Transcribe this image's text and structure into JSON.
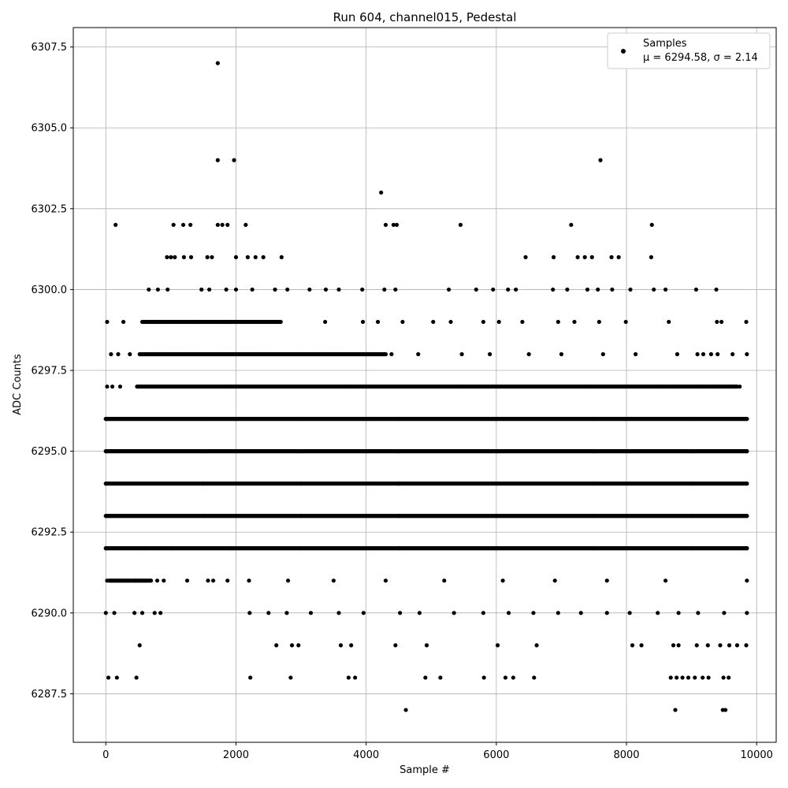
{
  "chart_data": {
    "type": "scatter",
    "title": "Run 604, channel015, Pedestal",
    "xlabel": "Sample #",
    "ylabel": "ADC Counts",
    "xlim": [
      -500,
      10300
    ],
    "ylim": [
      6286.0,
      6308.1
    ],
    "xticks": [
      0,
      2000,
      4000,
      6000,
      8000,
      10000
    ],
    "xtick_labels": [
      "0",
      "2000",
      "4000",
      "6000",
      "8000",
      "10000"
    ],
    "yticks": [
      6287.5,
      6290.0,
      6292.5,
      6295.0,
      6297.5,
      6300.0,
      6302.5,
      6305.0,
      6307.5
    ],
    "ytick_labels": [
      "6287.5",
      "6290.0",
      "6292.5",
      "6295.0",
      "6297.5",
      "6300.0",
      "6302.5",
      "6305.0",
      "6307.5"
    ],
    "grid": true,
    "legend_position": "top-right",
    "marker_color": "#000000",
    "series": [
      {
        "name": "Samples",
        "stats_label": "μ = 6294.58, σ = 2.14",
        "points": [
          [
            1720,
            6307
          ],
          [
            1720,
            6304
          ],
          [
            1970,
            6304
          ],
          [
            7600,
            6304
          ],
          [
            4230,
            6303
          ],
          [
            150,
            6302
          ],
          [
            1040,
            6302
          ],
          [
            1190,
            6302
          ],
          [
            1300,
            6302
          ],
          [
            1720,
            6302
          ],
          [
            1790,
            6302
          ],
          [
            1870,
            6302
          ],
          [
            2150,
            6302
          ],
          [
            4300,
            6302
          ],
          [
            4420,
            6302
          ],
          [
            4470,
            6302
          ],
          [
            5450,
            6302
          ],
          [
            7150,
            6302
          ],
          [
            8390,
            6302
          ],
          [
            940,
            6301
          ],
          [
            1000,
            6301
          ],
          [
            1060,
            6301
          ],
          [
            1200,
            6301
          ],
          [
            1310,
            6301
          ],
          [
            1560,
            6301
          ],
          [
            1630,
            6301
          ],
          [
            2000,
            6301
          ],
          [
            2180,
            6301
          ],
          [
            2300,
            6301
          ],
          [
            2420,
            6301
          ],
          [
            2700,
            6301
          ],
          [
            6450,
            6301
          ],
          [
            6880,
            6301
          ],
          [
            7250,
            6301
          ],
          [
            7360,
            6301
          ],
          [
            7470,
            6301
          ],
          [
            7770,
            6301
          ],
          [
            7880,
            6301
          ],
          [
            8380,
            6301
          ],
          [
            660,
            6300
          ],
          [
            800,
            6300
          ],
          [
            950,
            6300
          ],
          [
            1470,
            6300
          ],
          [
            1590,
            6300
          ],
          [
            1850,
            6300
          ],
          [
            2000,
            6300
          ],
          [
            2250,
            6300
          ],
          [
            2600,
            6300
          ],
          [
            2790,
            6300
          ],
          [
            3130,
            6300
          ],
          [
            3380,
            6300
          ],
          [
            3580,
            6300
          ],
          [
            3940,
            6300
          ],
          [
            4280,
            6300
          ],
          [
            4450,
            6300
          ],
          [
            5270,
            6300
          ],
          [
            5690,
            6300
          ],
          [
            5950,
            6300
          ],
          [
            6180,
            6300
          ],
          [
            6300,
            6300
          ],
          [
            6870,
            6300
          ],
          [
            7090,
            6300
          ],
          [
            7400,
            6300
          ],
          [
            7560,
            6300
          ],
          [
            7780,
            6300
          ],
          [
            8060,
            6300
          ],
          [
            8420,
            6300
          ],
          [
            8600,
            6300
          ],
          [
            9070,
            6300
          ],
          [
            9380,
            6300
          ],
          [
            20,
            6299
          ],
          [
            270,
            6299
          ],
          [
            800,
            6299
          ],
          [
            1400,
            6299
          ],
          [
            1930,
            6299
          ],
          [
            2600,
            6299
          ],
          [
            3370,
            6299
          ],
          [
            3950,
            6299
          ],
          [
            4180,
            6299
          ],
          [
            4560,
            6299
          ],
          [
            5030,
            6299
          ],
          [
            5300,
            6299
          ],
          [
            5800,
            6299
          ],
          [
            6040,
            6299
          ],
          [
            6400,
            6299
          ],
          [
            6950,
            6299
          ],
          [
            7200,
            6299
          ],
          [
            7580,
            6299
          ],
          [
            7990,
            6299
          ],
          [
            8650,
            6299
          ],
          [
            9390,
            6299
          ],
          [
            9460,
            6299
          ],
          [
            9840,
            6299
          ],
          [
            80,
            6298
          ],
          [
            190,
            6298
          ],
          [
            370,
            6298
          ],
          [
            890,
            6298
          ],
          [
            1800,
            6298
          ],
          [
            2400,
            6298
          ],
          [
            3300,
            6298
          ],
          [
            3870,
            6298
          ],
          [
            4390,
            6298
          ],
          [
            4800,
            6298
          ],
          [
            5470,
            6298
          ],
          [
            5900,
            6298
          ],
          [
            6500,
            6298
          ],
          [
            7000,
            6298
          ],
          [
            7640,
            6298
          ],
          [
            8140,
            6298
          ],
          [
            8780,
            6298
          ],
          [
            9090,
            6298
          ],
          [
            9180,
            6298
          ],
          [
            9300,
            6298
          ],
          [
            9400,
            6298
          ],
          [
            9630,
            6298
          ],
          [
            9850,
            6298
          ],
          [
            20,
            6297
          ],
          [
            100,
            6297
          ],
          [
            220,
            6297
          ],
          [
            490,
            6297
          ],
          [
            1900,
            6297
          ],
          [
            3700,
            6297
          ],
          [
            5500,
            6297
          ],
          [
            7400,
            6297
          ],
          [
            8500,
            6297
          ],
          [
            8800,
            6297
          ],
          [
            9100,
            6297
          ],
          [
            9390,
            6297
          ],
          [
            9600,
            6297
          ],
          [
            9740,
            6297
          ],
          [
            0,
            6296
          ],
          [
            1500,
            6296
          ],
          [
            3000,
            6296
          ],
          [
            4500,
            6296
          ],
          [
            6000,
            6296
          ],
          [
            7500,
            6296
          ],
          [
            9000,
            6296
          ],
          [
            9850,
            6296
          ],
          [
            0,
            6295
          ],
          [
            1500,
            6295
          ],
          [
            3000,
            6295
          ],
          [
            4500,
            6295
          ],
          [
            6000,
            6295
          ],
          [
            7500,
            6295
          ],
          [
            9000,
            6295
          ],
          [
            9850,
            6295
          ],
          [
            0,
            6294
          ],
          [
            1500,
            6294
          ],
          [
            3000,
            6294
          ],
          [
            4500,
            6294
          ],
          [
            6000,
            6294
          ],
          [
            7500,
            6294
          ],
          [
            9000,
            6294
          ],
          [
            9850,
            6294
          ],
          [
            0,
            6293
          ],
          [
            1500,
            6293
          ],
          [
            3000,
            6293
          ],
          [
            4500,
            6293
          ],
          [
            6000,
            6293
          ],
          [
            7500,
            6293
          ],
          [
            9000,
            6293
          ],
          [
            9850,
            6293
          ],
          [
            0,
            6292
          ],
          [
            600,
            6292
          ],
          [
            1000,
            6292
          ],
          [
            1900,
            6292
          ],
          [
            3000,
            6292
          ],
          [
            4500,
            6292
          ],
          [
            6000,
            6292
          ],
          [
            7500,
            6292
          ],
          [
            9000,
            6292
          ],
          [
            9850,
            6292
          ],
          [
            20,
            6291
          ],
          [
            450,
            6291
          ],
          [
            790,
            6291
          ],
          [
            890,
            6291
          ],
          [
            1250,
            6291
          ],
          [
            1570,
            6291
          ],
          [
            1650,
            6291
          ],
          [
            1870,
            6291
          ],
          [
            2200,
            6291
          ],
          [
            2800,
            6291
          ],
          [
            3500,
            6291
          ],
          [
            4300,
            6291
          ],
          [
            5200,
            6291
          ],
          [
            6100,
            6291
          ],
          [
            6900,
            6291
          ],
          [
            7700,
            6291
          ],
          [
            8600,
            6291
          ],
          [
            9850,
            6291
          ],
          [
            0,
            6290
          ],
          [
            130,
            6290
          ],
          [
            440,
            6290
          ],
          [
            560,
            6290
          ],
          [
            750,
            6290
          ],
          [
            840,
            6290
          ],
          [
            2210,
            6290
          ],
          [
            2500,
            6290
          ],
          [
            2780,
            6290
          ],
          [
            3150,
            6290
          ],
          [
            3580,
            6290
          ],
          [
            3960,
            6290
          ],
          [
            4520,
            6290
          ],
          [
            4820,
            6290
          ],
          [
            5350,
            6290
          ],
          [
            5800,
            6290
          ],
          [
            6190,
            6290
          ],
          [
            6570,
            6290
          ],
          [
            6950,
            6290
          ],
          [
            7300,
            6290
          ],
          [
            7700,
            6290
          ],
          [
            8050,
            6290
          ],
          [
            8480,
            6290
          ],
          [
            8800,
            6290
          ],
          [
            9100,
            6290
          ],
          [
            9500,
            6290
          ],
          [
            9850,
            6290
          ],
          [
            520,
            6289
          ],
          [
            2620,
            6289
          ],
          [
            2860,
            6289
          ],
          [
            2960,
            6289
          ],
          [
            3610,
            6289
          ],
          [
            3770,
            6289
          ],
          [
            4450,
            6289
          ],
          [
            4930,
            6289
          ],
          [
            6020,
            6289
          ],
          [
            6620,
            6289
          ],
          [
            8090,
            6289
          ],
          [
            8230,
            6289
          ],
          [
            8720,
            6289
          ],
          [
            8800,
            6289
          ],
          [
            9080,
            6289
          ],
          [
            9250,
            6289
          ],
          [
            9440,
            6289
          ],
          [
            9580,
            6289
          ],
          [
            9700,
            6289
          ],
          [
            9840,
            6289
          ],
          [
            40,
            6288
          ],
          [
            170,
            6288
          ],
          [
            470,
            6288
          ],
          [
            2220,
            6288
          ],
          [
            2840,
            6288
          ],
          [
            3730,
            6288
          ],
          [
            3830,
            6288
          ],
          [
            4910,
            6288
          ],
          [
            5140,
            6288
          ],
          [
            5810,
            6288
          ],
          [
            6140,
            6288
          ],
          [
            6260,
            6288
          ],
          [
            6580,
            6288
          ],
          [
            8680,
            6288
          ],
          [
            8770,
            6288
          ],
          [
            8860,
            6288
          ],
          [
            8950,
            6288
          ],
          [
            9050,
            6288
          ],
          [
            9170,
            6288
          ],
          [
            9260,
            6288
          ],
          [
            9490,
            6288
          ],
          [
            9570,
            6288
          ],
          [
            4610,
            6287
          ],
          [
            8750,
            6287
          ],
          [
            9480,
            6287
          ],
          [
            9520,
            6287
          ]
        ],
        "dense_bands": [
          {
            "y": 6297,
            "x_start": 480,
            "x_end": 9700
          },
          {
            "y": 6296,
            "x_start": 0,
            "x_end": 9850
          },
          {
            "y": 6295,
            "x_start": 0,
            "x_end": 9850
          },
          {
            "y": 6294,
            "x_start": 0,
            "x_end": 9850
          },
          {
            "y": 6293,
            "x_start": 0,
            "x_end": 9850
          },
          {
            "y": 6292,
            "x_start": 0,
            "x_end": 9850
          }
        ],
        "semi_dense_bands": [
          {
            "y": 6299,
            "x_start": 560,
            "x_end": 2700
          },
          {
            "y": 6298,
            "x_start": 520,
            "x_end": 4300
          },
          {
            "y": 6291,
            "x_start": 50,
            "x_end": 700
          }
        ]
      }
    ]
  }
}
